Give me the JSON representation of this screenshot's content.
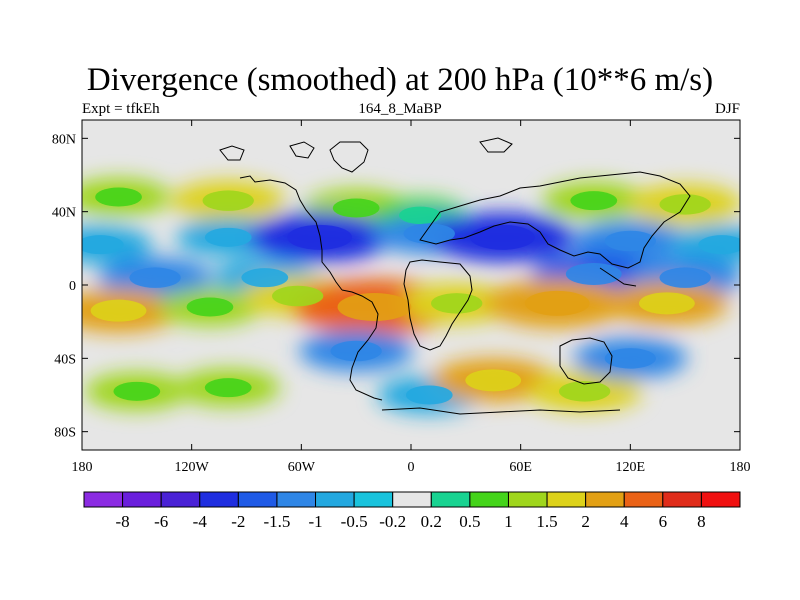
{
  "chart_data": {
    "type": "heatmap",
    "title": "Divergence (smoothed) at 200 hPa (10**6 m/s)",
    "subtitle_left": "Expt = tfkEh",
    "subtitle_center": "164_8_MaBP",
    "subtitle_right": "DJF",
    "xlim": [
      -180,
      180
    ],
    "ylim": [
      -90,
      90
    ],
    "x_ticks": [
      {
        "value": -180,
        "label": "180"
      },
      {
        "value": -120,
        "label": "120W"
      },
      {
        "value": -60,
        "label": "60W"
      },
      {
        "value": 0,
        "label": "0"
      },
      {
        "value": 60,
        "label": "60E"
      },
      {
        "value": 120,
        "label": "120E"
      },
      {
        "value": 180,
        "label": "180"
      }
    ],
    "y_ticks": [
      {
        "value": 80,
        "label": "80N"
      },
      {
        "value": 40,
        "label": "40N"
      },
      {
        "value": 0,
        "label": "0"
      },
      {
        "value": -40,
        "label": "40S"
      },
      {
        "value": -80,
        "label": "80S"
      }
    ],
    "colorbar": {
      "levels": [
        "-8",
        "-6",
        "-4",
        "-2",
        "-1.5",
        "-1",
        "-0.5",
        "-0.2",
        "0.2",
        "0.5",
        "1",
        "1.5",
        "2",
        "4",
        "6",
        "8"
      ],
      "colors": [
        "#8b2be2",
        "#6a1fdc",
        "#4a22d6",
        "#1f2ee0",
        "#1f5ae6",
        "#2f86e6",
        "#23a8e0",
        "#19c3dd",
        "#e6e6e6",
        "#18d391",
        "#44d41a",
        "#9fd61c",
        "#ddd21a",
        "#e2a014",
        "#ea6216",
        "#e02c1a",
        "#f01010"
      ]
    },
    "fields": [
      {
        "lon": -160,
        "lat": 48,
        "value": 1.0
      },
      {
        "lon": -100,
        "lat": 46,
        "value": 1.5
      },
      {
        "lon": -30,
        "lat": 42,
        "value": 1.0
      },
      {
        "lon": 5,
        "lat": 38,
        "value": 0.5
      },
      {
        "lon": 100,
        "lat": 46,
        "value": 1.0
      },
      {
        "lon": 150,
        "lat": 44,
        "value": 1.5
      },
      {
        "lon": -170,
        "lat": 22,
        "value": -1.0
      },
      {
        "lon": -100,
        "lat": 26,
        "value": -1.0
      },
      {
        "lon": -50,
        "lat": 26,
        "value": -3.0
      },
      {
        "lon": 10,
        "lat": 28,
        "value": -1.5
      },
      {
        "lon": 50,
        "lat": 26,
        "value": -3.0
      },
      {
        "lon": 120,
        "lat": 24,
        "value": -1.5
      },
      {
        "lon": 170,
        "lat": 22,
        "value": -1.0
      },
      {
        "lon": -140,
        "lat": 4,
        "value": -1.5
      },
      {
        "lon": -80,
        "lat": 4,
        "value": -1.0
      },
      {
        "lon": 100,
        "lat": 6,
        "value": -2.0
      },
      {
        "lon": 150,
        "lat": 4,
        "value": -1.5
      },
      {
        "lon": -160,
        "lat": -14,
        "value": 2.0
      },
      {
        "lon": -110,
        "lat": -12,
        "value": 1.0
      },
      {
        "lon": -62,
        "lat": -6,
        "value": 1.5
      },
      {
        "lon": -20,
        "lat": -12,
        "value": 5.0
      },
      {
        "lon": 25,
        "lat": -10,
        "value": 1.5
      },
      {
        "lon": 80,
        "lat": -10,
        "value": 3.0
      },
      {
        "lon": 140,
        "lat": -10,
        "value": 2.0
      },
      {
        "lon": -30,
        "lat": -36,
        "value": -1.5
      },
      {
        "lon": 10,
        "lat": -60,
        "value": -1.0
      },
      {
        "lon": 45,
        "lat": -52,
        "value": 2.0
      },
      {
        "lon": 95,
        "lat": -58,
        "value": 1.5
      },
      {
        "lon": 120,
        "lat": -40,
        "value": -1.5
      },
      {
        "lon": -150,
        "lat": -58,
        "value": 1.0
      },
      {
        "lon": -100,
        "lat": -56,
        "value": 1.0
      }
    ],
    "grid": false,
    "legend_placement": "bottom"
  }
}
